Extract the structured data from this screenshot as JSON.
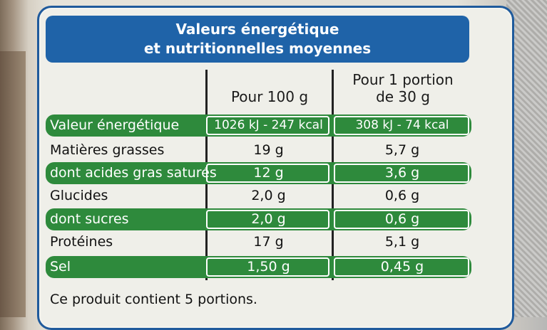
{
  "title": {
    "line1": "Valeurs énergétique",
    "line2": "et nutritionnelles moyennes"
  },
  "columns": {
    "per100": "Pour 100 g",
    "portion_line1": "Pour 1 portion",
    "portion_line2": "de 30 g"
  },
  "rows": [
    {
      "label": "Valeur énergétique",
      "per100": "1026 kJ - 247 kcal",
      "portion": "308 kJ - 74 kcal",
      "highlight": true
    },
    {
      "label": "Matières grasses",
      "per100": "19 g",
      "portion": "5,7 g",
      "highlight": false
    },
    {
      "label": "dont acides gras saturés",
      "per100": "12 g",
      "portion": "3,6 g",
      "highlight": true
    },
    {
      "label": "Glucides",
      "per100": "2,0 g",
      "portion": "0,6 g",
      "highlight": false
    },
    {
      "label": "dont sucres",
      "per100": "2,0 g",
      "portion": "0,6 g",
      "highlight": true
    },
    {
      "label": "Protéines",
      "per100": "17 g",
      "portion": "5,1 g",
      "highlight": false
    },
    {
      "label": "Sel",
      "per100": "1,50 g",
      "portion": "0,45 g",
      "highlight": true
    }
  ],
  "footer": "Ce produit contient 5 portions.",
  "colors": {
    "banner": "#1f63a8",
    "green_band": "#2e8a3c",
    "border": "#1f5a9c"
  }
}
